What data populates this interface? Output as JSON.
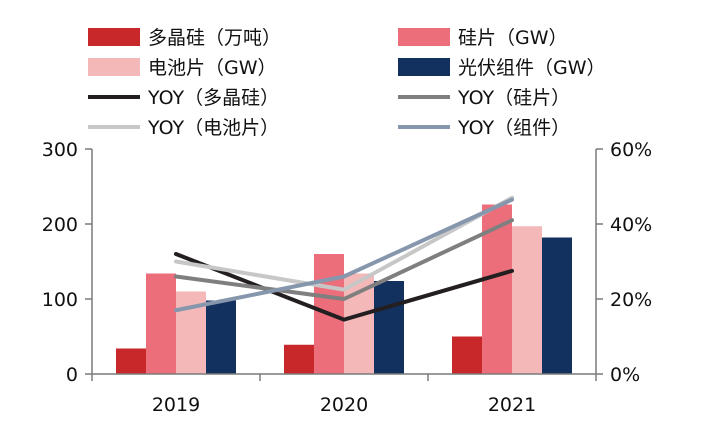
{
  "chart_data": {
    "type": "bar+line",
    "categories": [
      "2019",
      "2020",
      "2021"
    ],
    "bar_series": [
      {
        "name": "多晶硅（万吨）",
        "values": [
          34,
          39,
          50
        ],
        "color": "#c8282a"
      },
      {
        "name": "硅片（GW）",
        "values": [
          134,
          160,
          226
        ],
        "color": "#ec6e7b"
      },
      {
        "name": "电池片（GW）",
        "values": [
          110,
          134,
          197
        ],
        "color": "#f4b8b9"
      },
      {
        "name": "光伏组件（GW）",
        "values": [
          98,
          124,
          182
        ],
        "color": "#13315f"
      }
    ],
    "line_series": [
      {
        "name": "YOY（多晶硅）",
        "values": [
          0.32,
          0.145,
          0.275
        ],
        "color": "#231f20"
      },
      {
        "name": "YOY（硅片）",
        "values": [
          0.26,
          0.2,
          0.41
        ],
        "color": "#7f7f7f"
      },
      {
        "name": "YOY（电池片）",
        "values": [
          0.3,
          0.225,
          0.47
        ],
        "color": "#c7c7c7"
      },
      {
        "name": "YOY（组件）",
        "values": [
          0.17,
          0.26,
          0.465
        ],
        "color": "#8696ac"
      }
    ],
    "left_axis": {
      "min": 0,
      "max": 300,
      "ticks": [
        0,
        100,
        200,
        300
      ],
      "tick_labels": [
        "0",
        "100",
        "200",
        "300"
      ]
    },
    "right_axis": {
      "min": 0,
      "max": 0.6,
      "ticks": [
        0,
        0.2,
        0.4,
        0.6
      ],
      "tick_labels": [
        "0%",
        "20%",
        "40%",
        "60%"
      ]
    },
    "legend_placement": "top",
    "grid": false
  }
}
